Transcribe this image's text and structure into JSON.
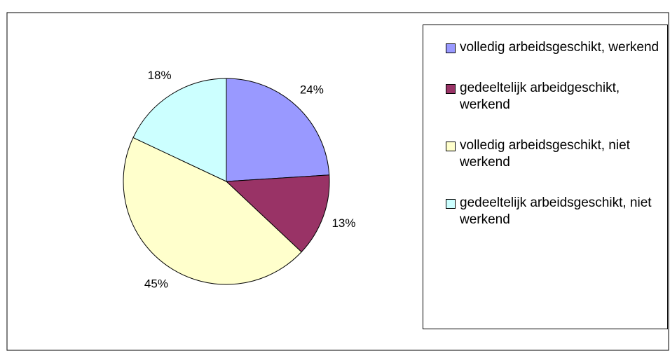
{
  "chart_data": {
    "type": "pie",
    "categories": [
      "volledig arbeidsgeschikt, werkend",
      "gedeeltelijk arbeidgeschikt, werkend",
      "volledig arbeidsgeschikt, niet werkend",
      "gedeeltelijk arbeidsgeschikt, niet werkend"
    ],
    "values": [
      24,
      13,
      45,
      18
    ],
    "value_labels": [
      "24%",
      "13%",
      "45%",
      "18%"
    ],
    "colors": [
      "#9999ff",
      "#993366",
      "#ffffcc",
      "#ccffff"
    ],
    "legend": "right"
  }
}
